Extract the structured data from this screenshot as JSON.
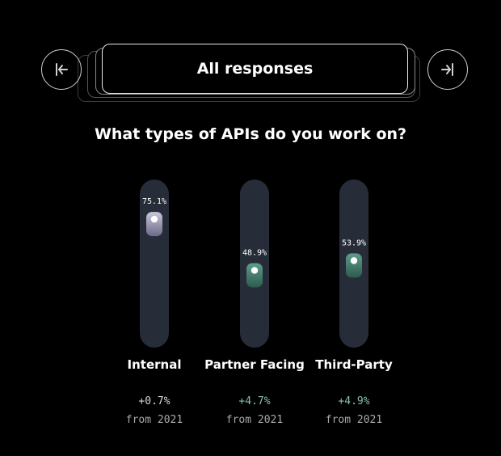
{
  "navigation": {
    "prev_icon": "first-page-arrow-icon",
    "next_icon": "last-page-arrow-icon"
  },
  "filter": {
    "label": "All responses"
  },
  "question": "What types of APIs do you work on?",
  "colors": {
    "track": "#262c38",
    "internal_marker": "#c9c6de",
    "other_marker": "#5f9d8a",
    "delta_positive": "#8ac0a8",
    "delta_neutral": "#d8d8d8"
  },
  "chart_data": {
    "type": "bar",
    "title": "What types of APIs do you work on?",
    "categories": [
      "Internal",
      "Partner Facing",
      "Third-Party"
    ],
    "values": [
      75.1,
      48.9,
      53.9
    ],
    "value_labels": [
      "75.1%",
      "48.9%",
      "53.9%"
    ],
    "deltas": [
      "+0.7%",
      "+4.7%",
      "+4.9%"
    ],
    "delta_note": "from 2021",
    "ylim": [
      0,
      100
    ],
    "grid": false
  }
}
